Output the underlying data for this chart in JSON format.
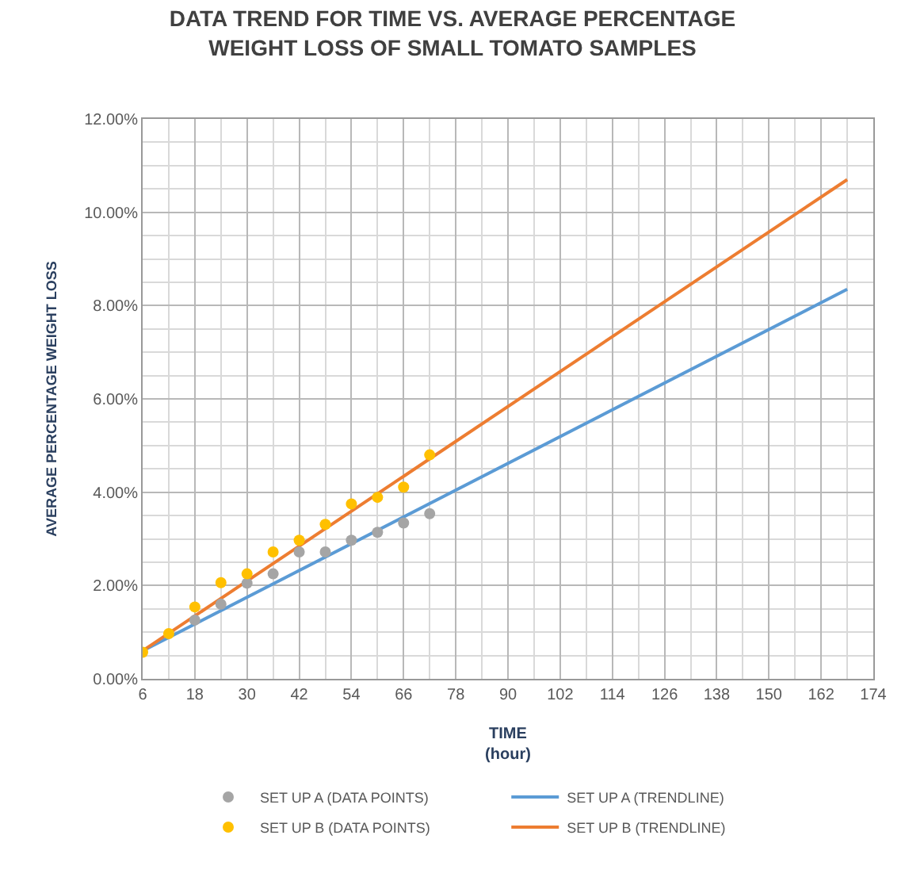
{
  "chart_data": {
    "type": "scatter",
    "title": "DATA TREND FOR TIME VS. AVERAGE PERCENTAGE\nWEIGHT LOSS OF SMALL TOMATO SAMPLES",
    "xlabel": "TIME\n(hour)",
    "ylabel": "AVERAGE PERCENTAGE WEIGHT LOSS",
    "xlim": [
      6,
      174
    ],
    "xticks": [
      6,
      18,
      30,
      42,
      54,
      66,
      78,
      90,
      102,
      114,
      126,
      138,
      150,
      162,
      174
    ],
    "ylim": [
      0,
      12
    ],
    "yticks": [
      {
        "value": 0,
        "label": "0.00%"
      },
      {
        "value": 2,
        "label": "2.00%"
      },
      {
        "value": 4,
        "label": "4.00%"
      },
      {
        "value": 6,
        "label": "6.00%"
      },
      {
        "value": 8,
        "label": "8.00%"
      },
      {
        "value": 10,
        "label": "10.00%"
      },
      {
        "value": 12,
        "label": "12.00%"
      }
    ],
    "grid": true,
    "legend": "bottom",
    "series": [
      {
        "name": "SET UP A (DATA POINTS)",
        "marker": "circle",
        "color": "#a5a5a5",
        "x": [
          18,
          24,
          30,
          36,
          42,
          48,
          54,
          60,
          66,
          72
        ],
        "values": [
          1.26,
          1.6,
          2.05,
          2.25,
          2.72,
          2.72,
          2.97,
          3.14,
          3.34,
          3.54
        ]
      },
      {
        "name": "SET UP A (TRENDLINE)",
        "type": "line",
        "marker": "none",
        "line_style": "solid",
        "color": "#5b9bd5",
        "x": [
          6,
          168
        ],
        "values": [
          0.6,
          8.35
        ]
      },
      {
        "name": "SET UP B (DATA POINTS)",
        "marker": "circle",
        "color": "#ffc000",
        "x": [
          6,
          12,
          18,
          24,
          30,
          36,
          42,
          48,
          54,
          60,
          66,
          72
        ],
        "values": [
          0.57,
          0.97,
          1.54,
          2.06,
          2.25,
          2.72,
          2.97,
          3.31,
          3.75,
          3.89,
          4.11,
          4.8
        ]
      },
      {
        "name": "SET UP B (TRENDLINE)",
        "type": "line",
        "marker": "none",
        "line_style": "solid",
        "color": "#ed7d31",
        "x": [
          6,
          168
        ],
        "values": [
          0.6,
          10.7
        ]
      }
    ]
  }
}
